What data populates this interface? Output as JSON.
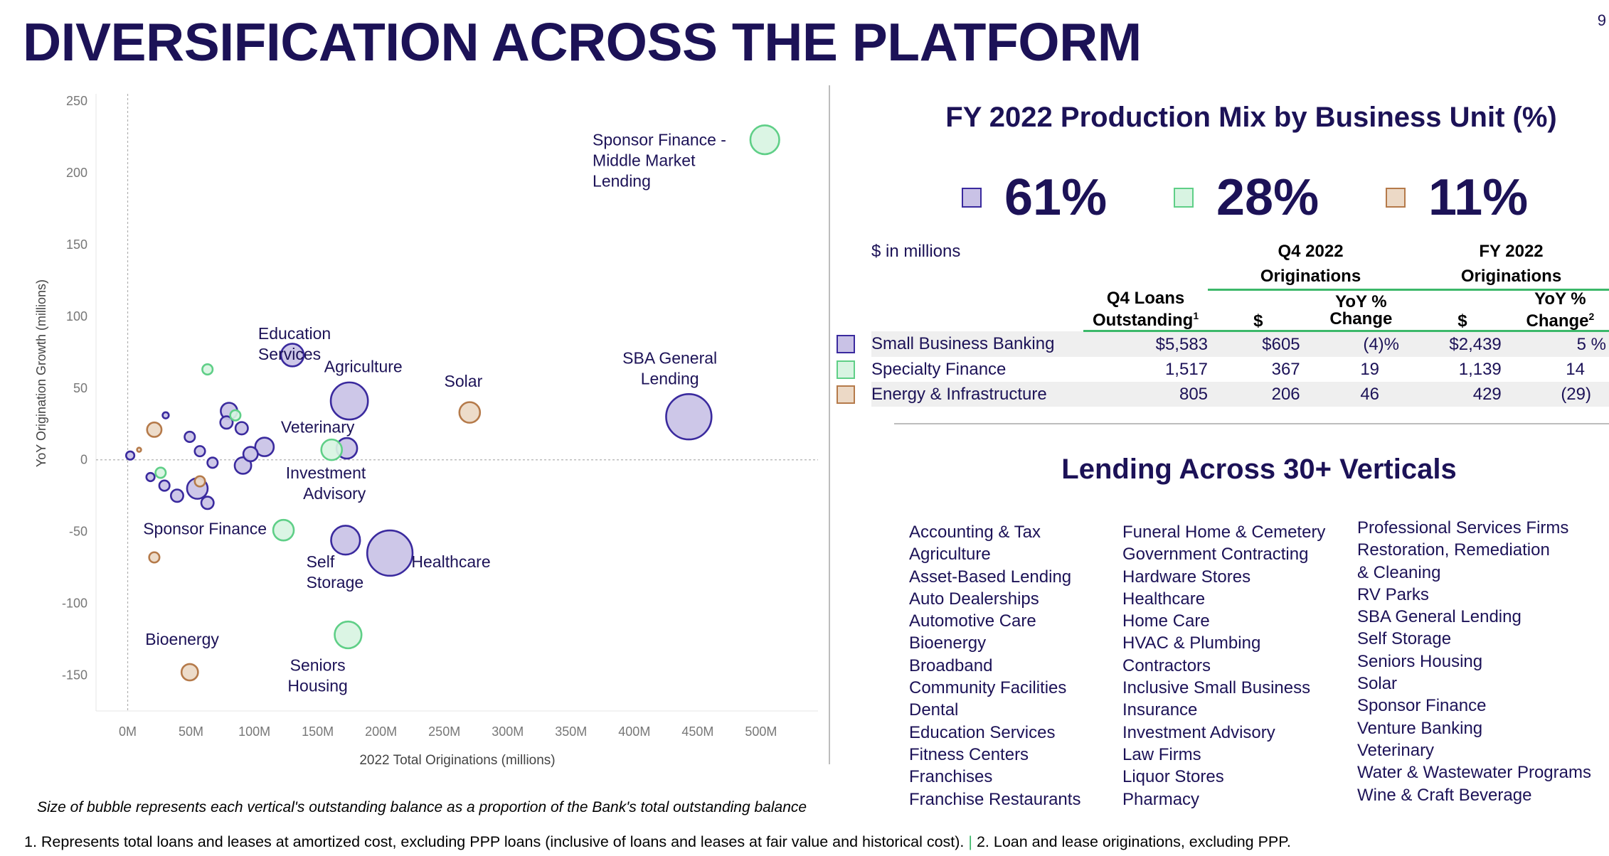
{
  "header": {
    "title": "DIVERSIFICATION ACROSS THE PLATFORM",
    "page_number": "9"
  },
  "colors": {
    "navy": "#1c1257",
    "purple": "#3a2a9e",
    "purple_fill": "#c9c2e6",
    "green": "#5fcf87",
    "green_fill": "#d8f4e2",
    "tan": "#b57a4a",
    "tan_fill": "#ecd9c6"
  },
  "chart_data": {
    "type": "scatter",
    "xlabel": "2022 Total Originations (millions)",
    "ylabel": "YoY Origination Growth (millions)",
    "xlim": [
      -25,
      545
    ],
    "ylim": [
      -175,
      255
    ],
    "xticks": [
      "0M",
      "50M",
      "100M",
      "150M",
      "200M",
      "250M",
      "300M",
      "350M",
      "400M",
      "450M",
      "500M"
    ],
    "xtick_values": [
      0,
      50,
      100,
      150,
      200,
      250,
      300,
      350,
      400,
      450,
      500
    ],
    "yticks": [
      "250",
      "200",
      "150",
      "100",
      "50",
      "0",
      "-50",
      "-100",
      "-150"
    ],
    "ytick_values": [
      250,
      200,
      150,
      100,
      50,
      0,
      -50,
      -100,
      -150
    ],
    "series": [
      {
        "name": "Small Business Banking",
        "color": "#3a2a9e",
        "fill": "#c9c2e6",
        "points": [
          {
            "label": "",
            "x": 2,
            "y": 3,
            "size": 4
          },
          {
            "label": "",
            "x": 18,
            "y": -12,
            "size": 4
          },
          {
            "label": "",
            "x": 30,
            "y": 31,
            "size": 3
          },
          {
            "label": "",
            "x": 29,
            "y": -18,
            "size": 5
          },
          {
            "label": "",
            "x": 39,
            "y": -25,
            "size": 6
          },
          {
            "label": "",
            "x": 49,
            "y": 16,
            "size": 5
          },
          {
            "label": "",
            "x": 57,
            "y": 6,
            "size": 5
          },
          {
            "label": "",
            "x": 55,
            "y": -20,
            "size": 10
          },
          {
            "label": "",
            "x": 63,
            "y": -30,
            "size": 6
          },
          {
            "label": "",
            "x": 67,
            "y": -2,
            "size": 5
          },
          {
            "label": "",
            "x": 78,
            "y": 26,
            "size": 6
          },
          {
            "label": "",
            "x": 80,
            "y": 34,
            "size": 8
          },
          {
            "label": "",
            "x": 90,
            "y": 22,
            "size": 6
          },
          {
            "label": "",
            "x": 91,
            "y": -4,
            "size": 8
          },
          {
            "label": "",
            "x": 97,
            "y": 4,
            "size": 7
          },
          {
            "label": "",
            "x": 108,
            "y": 9,
            "size": 9
          },
          {
            "label": "Education Services",
            "x": 130,
            "y": 73,
            "size": 11
          },
          {
            "label": "Agriculture",
            "x": 175,
            "y": 41,
            "size": 18
          },
          {
            "label": "Veterinary",
            "x": 173,
            "y": 8,
            "size": 10
          },
          {
            "label": "Self Storage",
            "x": 172,
            "y": -56,
            "size": 14
          },
          {
            "label": "Healthcare",
            "x": 207,
            "y": -65,
            "size": 22
          },
          {
            "label": "SBA General Lending",
            "x": 443,
            "y": 30,
            "size": 22
          }
        ]
      },
      {
        "name": "Specialty Finance",
        "color": "#5fcf87",
        "fill": "#d8f4e2",
        "points": [
          {
            "label": "",
            "x": 63,
            "y": 63,
            "size": 5
          },
          {
            "label": "",
            "x": 26,
            "y": -9,
            "size": 5
          },
          {
            "label": "",
            "x": 85,
            "y": 31,
            "size": 5
          },
          {
            "label": "Investment Advisory",
            "x": 161,
            "y": 7,
            "size": 10
          },
          {
            "label": "Sponsor Finance",
            "x": 123,
            "y": -49,
            "size": 10
          },
          {
            "label": "Seniors Housing",
            "x": 174,
            "y": -122,
            "size": 13
          },
          {
            "label": "Sponsor Finance - Middle Market Lending",
            "x": 503,
            "y": 223,
            "size": 14
          }
        ]
      },
      {
        "name": "Energy & Infrastructure",
        "color": "#b57a4a",
        "fill": "#ecd9c6",
        "points": [
          {
            "label": "",
            "x": 9,
            "y": 7,
            "size": 2
          },
          {
            "label": "",
            "x": 21,
            "y": 21,
            "size": 7
          },
          {
            "label": "",
            "x": 57,
            "y": -15,
            "size": 5
          },
          {
            "label": "",
            "x": 21,
            "y": -68,
            "size": 5
          },
          {
            "label": "Solar",
            "x": 270,
            "y": 33,
            "size": 10
          },
          {
            "label": "Bioenergy",
            "x": 49,
            "y": -148,
            "size": 8
          }
        ]
      }
    ]
  },
  "chart_labels": [
    {
      "lines": [
        "Sponsor Finance -",
        "Middle Market",
        "Lending"
      ],
      "x": 367,
      "y": 219,
      "anchor": "start"
    },
    {
      "lines": [
        "SBA General",
        "Lending"
      ],
      "x": 428,
      "y": 67,
      "anchor": "middle"
    },
    {
      "lines": [
        "Education",
        "Services"
      ],
      "x": 103,
      "y": 84,
      "anchor": "start"
    },
    {
      "lines": [
        "Agriculture"
      ],
      "x": 186,
      "y": 61,
      "anchor": "middle"
    },
    {
      "lines": [
        "Solar"
      ],
      "x": 265,
      "y": 51,
      "anchor": "middle"
    },
    {
      "lines": [
        "Veterinary"
      ],
      "x": 150,
      "y": 19,
      "anchor": "middle"
    },
    {
      "lines": [
        "Investment",
        "Advisory"
      ],
      "x": 188,
      "y": -13,
      "anchor": "end"
    },
    {
      "lines": [
        "Sponsor Finance"
      ],
      "x": 61,
      "y": -52,
      "anchor": "middle"
    },
    {
      "lines": [
        "Self",
        "Storage"
      ],
      "x": 141,
      "y": -75,
      "anchor": "start"
    },
    {
      "lines": [
        "Healthcare"
      ],
      "x": 224,
      "y": -75,
      "anchor": "start"
    },
    {
      "lines": [
        "Bioenergy"
      ],
      "x": 43,
      "y": -129,
      "anchor": "middle"
    },
    {
      "lines": [
        "Seniors",
        "Housing"
      ],
      "x": 150,
      "y": -147,
      "anchor": "middle"
    }
  ],
  "production_mix": {
    "title": "FY 2022 Production Mix by Business Unit (%)",
    "items": [
      {
        "value": "61%",
        "color": "#3a2a9e",
        "fill": "#c9c2e6"
      },
      {
        "value": "28%",
        "color": "#5fcf87",
        "fill": "#d8f4e2"
      },
      {
        "value": "11%",
        "color": "#b57a4a",
        "fill": "#ecd9c6"
      }
    ]
  },
  "table": {
    "units": "$ in millions",
    "q4_group": [
      "Q4 2022",
      "Originations"
    ],
    "fy_group": [
      "FY 2022",
      "Originations"
    ],
    "col_loans": [
      "Q4 Loans",
      "Outstanding"
    ],
    "col_loans_sup": "1",
    "col_dollar": "$",
    "col_yoy": [
      "YoY %",
      "Change"
    ],
    "col_yoy_sup": "2",
    "rows": [
      {
        "name": "Small Business Banking",
        "loans": "$5,583",
        "q4": "$605",
        "q4_yoy": "(4)%",
        "fy": "$2,439",
        "fy_yoy": "5 %",
        "color": "#3a2a9e",
        "fill": "#c9c2e6"
      },
      {
        "name": "Specialty Finance",
        "loans": "1,517",
        "q4": "367",
        "q4_yoy": "19",
        "fy": "1,139",
        "fy_yoy": "14",
        "color": "#5fcf87",
        "fill": "#d8f4e2"
      },
      {
        "name": "Energy & Infrastructure",
        "loans": "805",
        "q4": "206",
        "q4_yoy": "46",
        "fy": "429",
        "fy_yoy": "(29)",
        "color": "#b57a4a",
        "fill": "#ecd9c6"
      }
    ]
  },
  "verticals": {
    "title": "Lending Across 30+ Verticals",
    "col1": [
      "Accounting & Tax",
      "Agriculture",
      "Asset-Based Lending",
      "Auto Dealerships",
      "Automotive Care",
      "Bioenergy",
      "Broadband",
      "Community Facilities",
      "Dental",
      "Education Services",
      "Fitness Centers",
      "Franchises",
      "Franchise Restaurants"
    ],
    "col2": [
      "Funeral Home & Cemetery",
      "Government Contracting",
      "Hardware Stores",
      "Healthcare",
      "Home Care",
      "HVAC & Plumbing",
      "Contractors",
      "Inclusive Small Business",
      "Insurance",
      "Investment Advisory",
      "Law Firms",
      "Liquor Stores",
      "Pharmacy"
    ],
    "col3": [
      "Professional Services Firms",
      "Restoration, Remediation",
      "& Cleaning",
      "RV Parks",
      "SBA General Lending",
      "Self Storage",
      "Seniors Housing",
      "Solar",
      "Sponsor Finance",
      "Venture Banking",
      "Veterinary",
      "Water & Wastewater Programs",
      "Wine & Craft Beverage"
    ]
  },
  "notes": {
    "bubble_note": "Size of bubble represents each vertical's outstanding balance as a proportion of the Bank's total outstanding balance",
    "footnote_1": "1. Represents total loans and leases at amortized cost, excluding PPP loans (inclusive of loans and leases at fair value and historical cost).",
    "footnote_sep": "|",
    "footnote_2": "2. Loan and lease originations, excluding PPP."
  }
}
